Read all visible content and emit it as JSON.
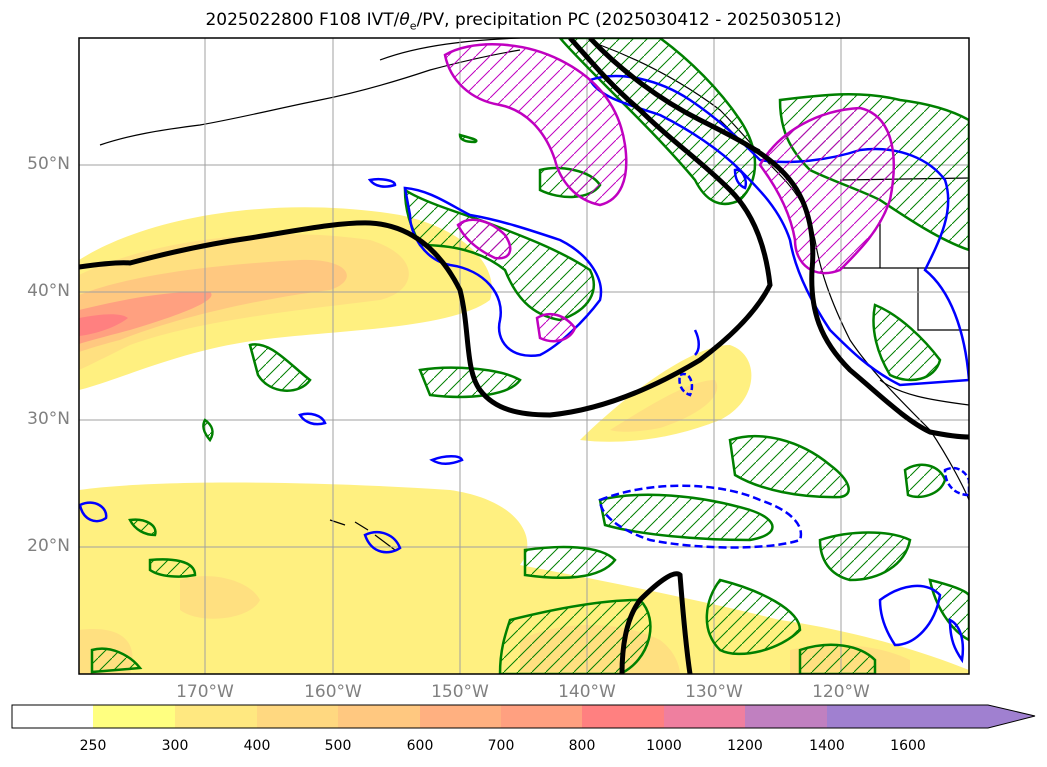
{
  "title_prefix": "2025022800 F108 IVT/",
  "title_theta": "θ",
  "title_theta_sub": "e",
  "title_suffix": "/PV, precipitation PC (2025030412 - 2025030512)",
  "latitudes": [
    "50°N",
    "40°N",
    "30°N",
    "20°N"
  ],
  "longitudes": [
    "170°W",
    "160°W",
    "150°W",
    "140°W",
    "130°W",
    "120°W"
  ],
  "colorbar": {
    "levels": [
      "250",
      "300",
      "400",
      "500",
      "600",
      "700",
      "800",
      "1000",
      "1200",
      "1400",
      "1600"
    ],
    "colors": [
      "#ffffff",
      "#ffff80",
      "#ffe880",
      "#ffd880",
      "#ffc880",
      "#ffb080",
      "#ffa080",
      "#ff8080",
      "#ef7f9f",
      "#c080c0",
      "#a080d0"
    ]
  },
  "contour_colors": {
    "ivt_fill": "#fff080",
    "theta_e": "#000000",
    "precip_pc1": "#008000",
    "precip_pc2": "#0000ff",
    "precip_pc3": "#c000c0"
  }
}
